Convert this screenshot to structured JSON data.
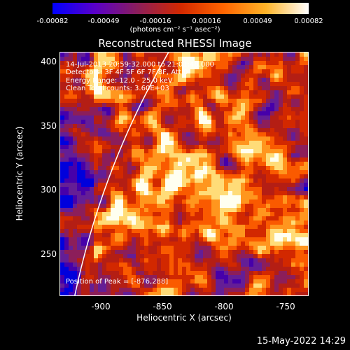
{
  "colorbar": {
    "ticks": [
      "-0.00082",
      "-0.00049",
      "-0.00016",
      "0.00016",
      "0.00049",
      "0.00082"
    ],
    "units": "(photons cm⁻² s⁻¹ asec⁻²)",
    "colors": [
      "#0000ff",
      "#5a00c8",
      "#8c1e5a",
      "#d22800",
      "#ff6400",
      "#ffb428",
      "#ffffff"
    ]
  },
  "title": "Reconstructed RHESSI Image",
  "annotations": {
    "time": "14-Jul-2013 20:59:32.000 to 21:01:48.000",
    "detectors": "Detectors: 3F 4F 5F 6F 7F 8F, Att 0",
    "energy": "Energy Range: 12.0 - 25.0 keV",
    "method": "Clean     Total counts: 3.60E+03",
    "peak": "Position of Peak = [-876,288]"
  },
  "axes": {
    "xlabel": "Heliocentric X (arcsec)",
    "ylabel": "Heliocentric Y (arcsec)",
    "xticks": [
      "-900",
      "-850",
      "-800",
      "-750"
    ],
    "yticks": [
      "400",
      "350",
      "300",
      "250"
    ]
  },
  "footer": "15-May-2022 14:29"
}
